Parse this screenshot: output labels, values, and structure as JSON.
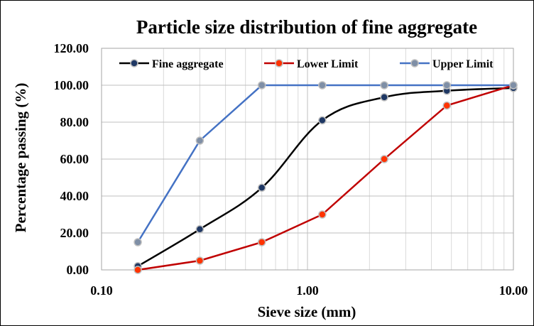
{
  "chart_data": {
    "type": "line",
    "title": "Particle size distribution of fine aggregate",
    "xlabel": "Sieve size (mm)",
    "ylabel": "Percentage passing (%)",
    "x_scale": "log",
    "xlim": [
      0.1,
      10
    ],
    "ylim": [
      0,
      120
    ],
    "x_ticks": [
      "0.10",
      "1.00",
      "10.00"
    ],
    "y_ticks": [
      "0.00",
      "20.00",
      "40.00",
      "60.00",
      "80.00",
      "100.00",
      "120.00"
    ],
    "grid": true,
    "legend_position": "top",
    "series": [
      {
        "name": "Fine aggregate",
        "color": "#000000",
        "x": [
          0.15,
          0.3,
          0.6,
          1.18,
          2.36,
          4.75,
          10
        ],
        "y": [
          2,
          22,
          44.5,
          81,
          93.5,
          97,
          98.5
        ]
      },
      {
        "name": "Lower Limit",
        "color": "#c00000",
        "x": [
          0.15,
          0.3,
          0.6,
          1.18,
          2.36,
          4.75,
          10
        ],
        "y": [
          0,
          5,
          15,
          30,
          60,
          89,
          100
        ]
      },
      {
        "name": "Upper Limit",
        "color": "#4472c4",
        "x": [
          0.15,
          0.3,
          0.6,
          1.18,
          2.36,
          4.75,
          10
        ],
        "y": [
          15,
          70,
          100,
          100,
          100,
          100,
          100
        ]
      }
    ]
  }
}
